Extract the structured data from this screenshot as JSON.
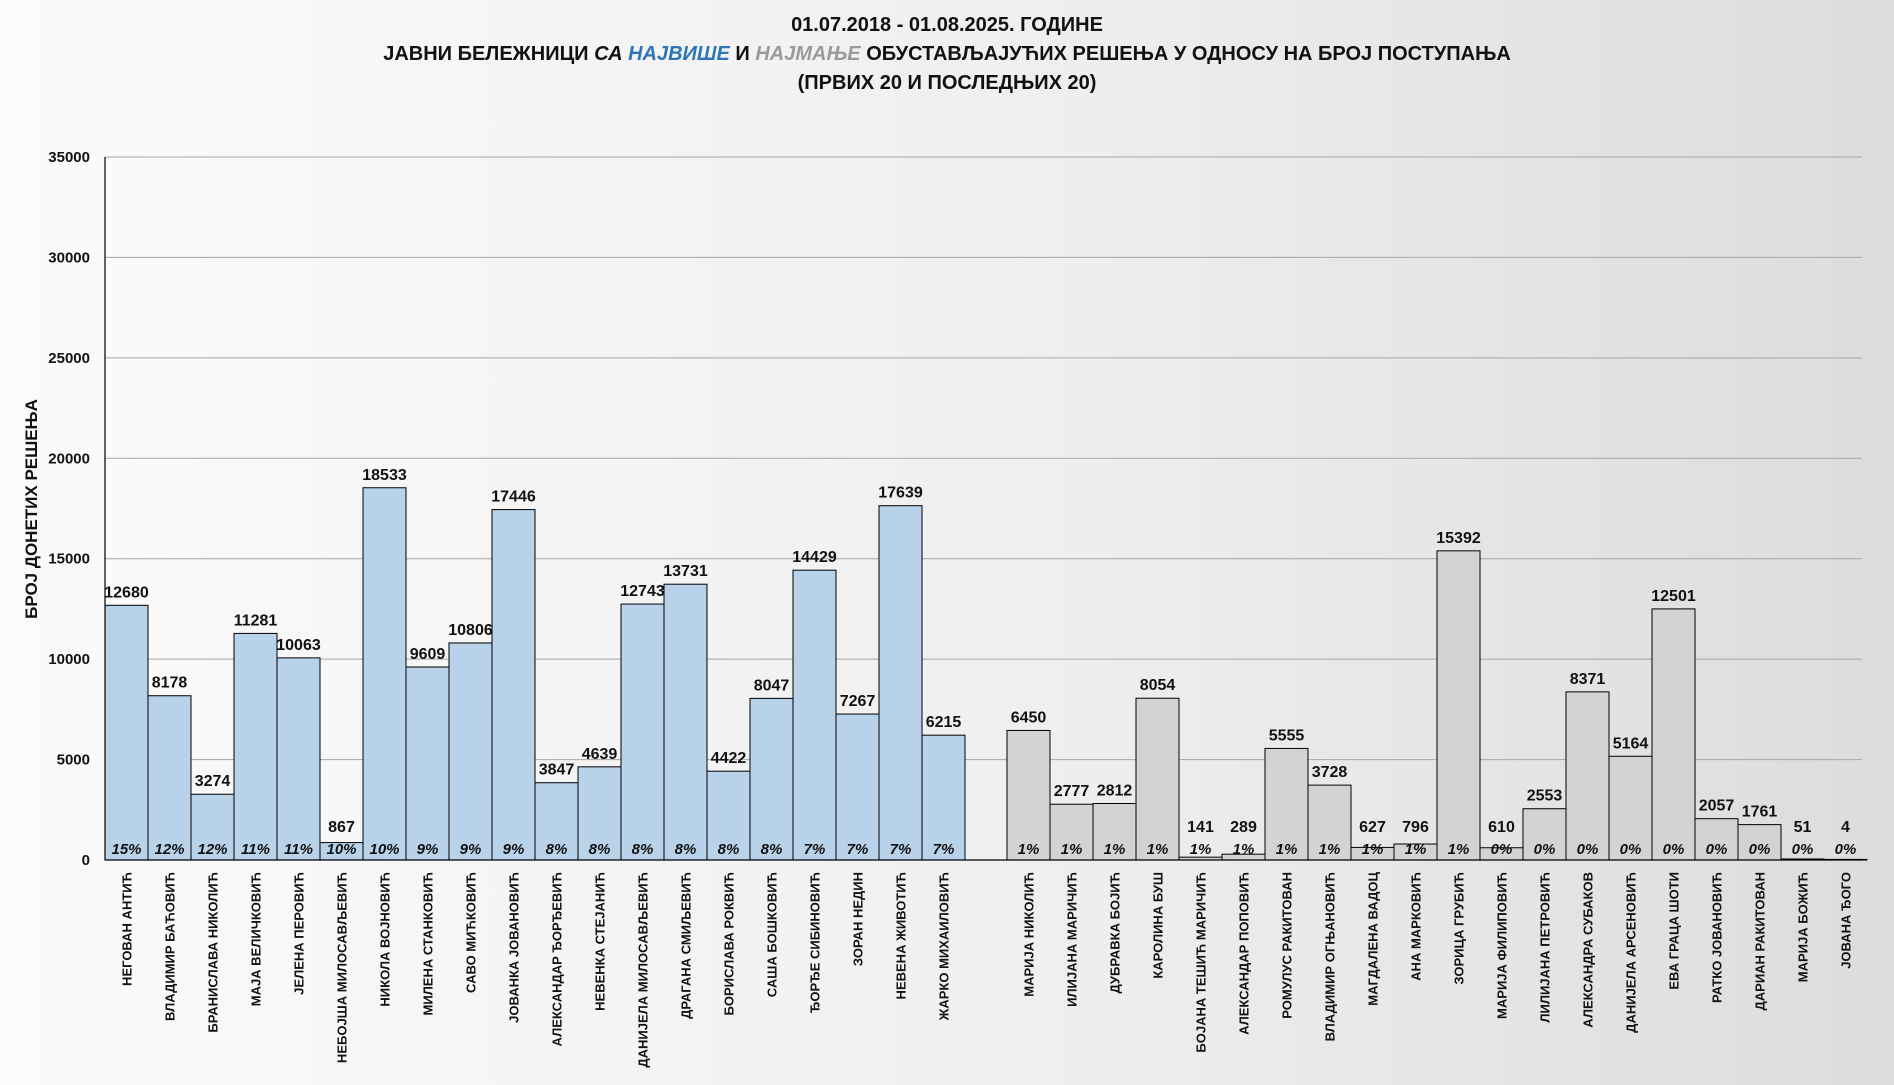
{
  "title": {
    "line1": "01.07.2018  - 01.08.2025. ГОДИНЕ",
    "line2_a": "ЈАВНИ БЕЛЕЖНИЦИ ",
    "line2_b": "СА ",
    "line2_c": "НАЈВИШЕ",
    "line2_d": " И ",
    "line2_e": "НАЈМАЊЕ",
    "line2_f": " ОБУСТАВЉАЈУЋИХ РЕШЕЊА У ОДНОСУ НА БРОЈ ПОСТУПАЊА",
    "line3": "(ПРВИХ 20 И ПОСЛЕДЊИХ 20)"
  },
  "colors": {
    "most": "#b8d2ea",
    "least": "#d3d3d3",
    "most_text": "#2e75b6",
    "least_text": "#9a9a9a",
    "bar_stroke": "#000000",
    "grid": "#a6a6a6"
  },
  "chart_data": {
    "type": "bar",
    "ylabel": "БРОЈ ДОНЕТИХ РЕШЕЊА",
    "ylim": [
      0,
      35000
    ],
    "yticks": [
      0,
      5000,
      10000,
      15000,
      20000,
      25000,
      30000,
      35000
    ],
    "grid": true,
    "groups": [
      {
        "name": "most",
        "categories": [
          "НЕГОВАН АНТИЋ",
          "ВЛАДИМИР БАЋОВИЋ",
          "БРАНИСЛАВА НИКОЛИЋ",
          "МАЈА ВЕЛИЧКОВИЋ",
          "ЈЕЛЕНА ПЕРОВИЋ",
          "НЕБОЈША МИЛОСАВЉЕВИЋ",
          "НИКОЛА ВОЈНОВИЋ",
          "МИЛЕНА СТАНКОВИЋ",
          "САВО МИЋКОВИЋ",
          "ЈОВАНКА ЈОВАНОВИЋ",
          "АЛЕКСАНДАР ЂОРЂЕВИЋ",
          "НЕВЕНКА СТЕЈАНИЋ",
          "ДАНИЈЕЛА МИЛОСАВЉЕВИЋ",
          "ДРАГАНА СМИЉЕВИЋ",
          "БОРИСЛАВА РОКВИЋ",
          "САША БОШКОВИЋ",
          "ЂОРЂЕ СИБИНОВИЋ",
          "ЗОРАН НЕДИН",
          "НЕВЕНА ЖИВОТИЋ",
          "ЖАРКО МИХАИЛОВИЋ"
        ],
        "values": [
          12680,
          8178,
          3274,
          11281,
          10063,
          867,
          18533,
          9609,
          10806,
          17446,
          3847,
          4639,
          12743,
          13731,
          4422,
          8047,
          14429,
          7267,
          17639,
          6215
        ],
        "percent_labels": [
          "15%",
          "12%",
          "12%",
          "11%",
          "11%",
          "10%",
          "10%",
          "9%",
          "9%",
          "9%",
          "8%",
          "8%",
          "8%",
          "8%",
          "8%",
          "8%",
          "7%",
          "7%",
          "7%",
          "7%"
        ]
      },
      {
        "name": "least",
        "categories": [
          "МАРИЈА НИКОЛИЋ",
          "ИЛИЈАНА МАРИЧИЋ",
          "ДУБРАВКА БОЈИЋ",
          "КАРОЛИНА БУШ",
          "БОЈАНА ТЕШИЋ МАРИЧИЋ",
          "АЛЕКСАНДАР ПОПОВИЋ",
          "РОМУЛУС РАКИТОВАН",
          "ВЛАДИМИР ОГЊАНОВИЋ",
          "МАГДАЛЕНА ВАДОЦ",
          "АНА МАРКОВИЋ",
          "ЗОРИЦА ГРУБИЋ",
          "МАРИЈА ФИЛИПОВИЋ",
          "ЛИЛИЈАНА ПЕТРОВИЋ",
          "АЛЕКСАНДРА СУБАКОВ",
          "ДАНИЈЕЛА АРСЕНОВИЋ",
          "ЕВА ГРАЦА ШОТИ",
          "РАТКО ЈОВАНОВИЋ",
          "ДАРИАН РАКИТОВАН",
          "МАРИЈА БОЖИЋ",
          "ЈОВАНА ЂОГО"
        ],
        "values": [
          6450,
          2777,
          2812,
          8054,
          141,
          289,
          5555,
          3728,
          627,
          796,
          15392,
          610,
          2553,
          8371,
          5164,
          12501,
          2057,
          1761,
          51,
          4
        ],
        "percent_labels": [
          "1%",
          "1%",
          "1%",
          "1%",
          "1%",
          "1%",
          "1%",
          "1%",
          "1%",
          "1%",
          "1%",
          "0%",
          "0%",
          "0%",
          "0%",
          "0%",
          "0%",
          "0%",
          "0%",
          "0%"
        ]
      }
    ]
  }
}
